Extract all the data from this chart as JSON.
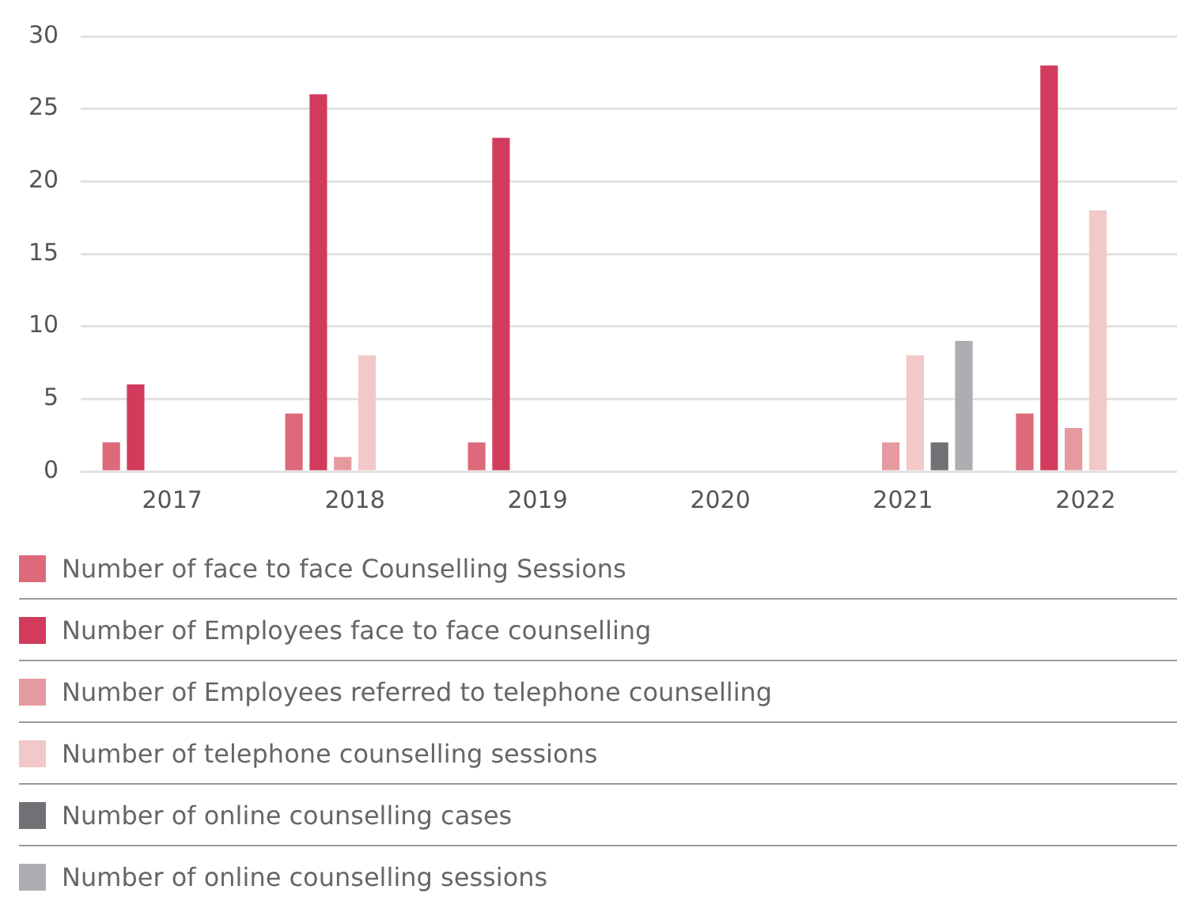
{
  "chart_data": {
    "type": "bar",
    "categories": [
      "2017",
      "2018",
      "2019",
      "2020",
      "2021",
      "2022"
    ],
    "series": [
      {
        "name": "Number of face to face Counselling Sessions",
        "color": "#dc6a7a",
        "values": [
          2,
          4,
          2,
          0,
          0,
          4
        ]
      },
      {
        "name": "Number of Employees face to face counselling",
        "color": "#d23b5c",
        "values": [
          6,
          26,
          23,
          0,
          0,
          28
        ]
      },
      {
        "name": "Number of Employees referred to telephone counselling",
        "color": "#e59aa0",
        "values": [
          0,
          1,
          0,
          0,
          2,
          3
        ]
      },
      {
        "name": "Number of telephone counselling sessions",
        "color": "#f2c8c8",
        "values": [
          0,
          8,
          0,
          0,
          8,
          18
        ]
      },
      {
        "name": "Number of online counselling cases",
        "color": "#707075",
        "values": [
          0,
          0,
          0,
          0,
          2,
          0
        ]
      },
      {
        "name": "Number of online counselling sessions",
        "color": "#aeaeb2",
        "values": [
          0,
          0,
          0,
          0,
          9,
          0
        ]
      }
    ],
    "ylim": [
      0,
      30
    ],
    "yticks": [
      0,
      5,
      10,
      15,
      20,
      25,
      30
    ],
    "grid": "y",
    "legend": "bottom"
  }
}
